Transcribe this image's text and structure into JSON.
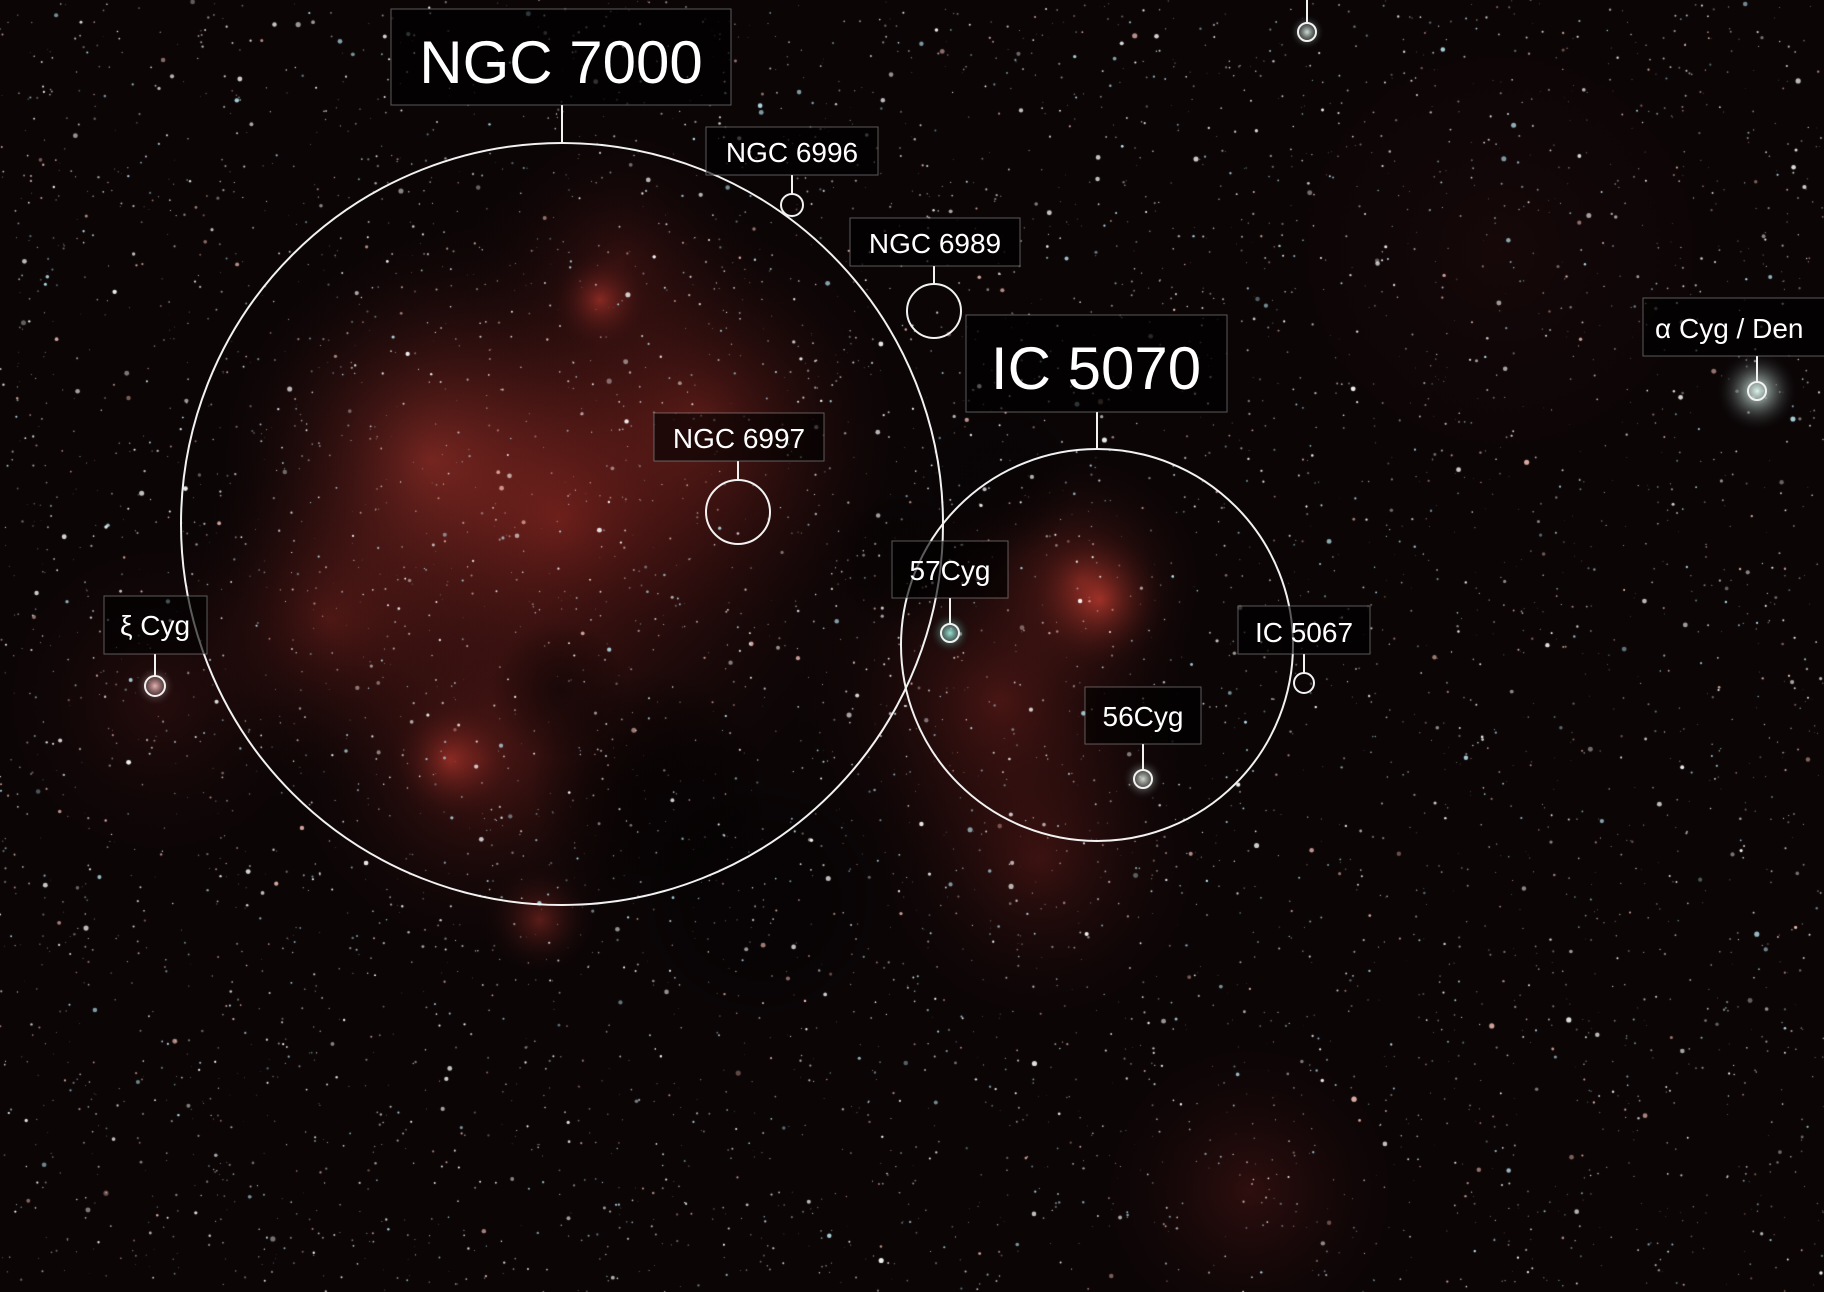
{
  "image": {
    "kind": "annotated-astrophotograph",
    "colors": {
      "background": "#0b0506",
      "nebula": "#b8362c",
      "annotation": "#f2f2f2"
    }
  },
  "labels": {
    "ngc7000": "NGC 7000",
    "ic5070": "IC 5070",
    "ngc6996": "NGC 6996",
    "ngc6989": "NGC 6989",
    "ngc6997": "NGC 6997",
    "cyg57": "57Cyg",
    "cyg56": "56Cyg",
    "ic5067": "IC 5067",
    "xi_cyg": "ξ Cyg",
    "deneb": "α Cyg / Den"
  }
}
